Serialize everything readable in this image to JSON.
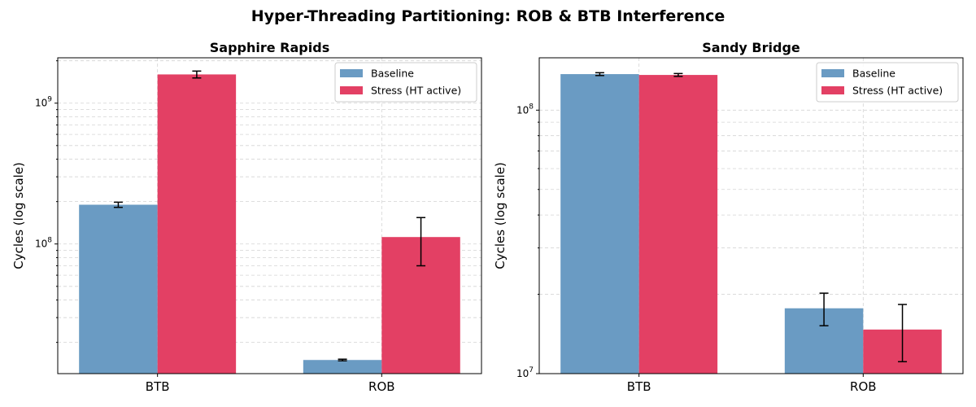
{
  "suptitle": "Hyper-Threading Partitioning: ROB & BTB Interference",
  "legend_labels": [
    "Baseline",
    "Stress (HT active)"
  ],
  "colors": {
    "baseline": "#6a9bc3",
    "stress": "#e34064"
  },
  "chart_data": [
    {
      "type": "bar",
      "title": "Sapphire Rapids",
      "ylabel": "Cycles (log scale)",
      "xlabel": "",
      "yscale": "log",
      "ylim": [
        12000000,
        2100000000
      ],
      "yticks": [
        {
          "value": 100000000,
          "base": "10",
          "exp": "8"
        },
        {
          "value": 1000000000,
          "base": "10",
          "exp": "9"
        }
      ],
      "grid": true,
      "legend": "upper right",
      "categories": [
        "BTB",
        "ROB"
      ],
      "series": [
        {
          "name": "Baseline",
          "values": [
            190000000,
            15000000
          ],
          "errors": [
            8000000,
            200000
          ]
        },
        {
          "name": "Stress (HT active)",
          "values": [
            1600000000,
            112000000
          ],
          "errors": [
            90000000,
            42000000
          ]
        }
      ]
    },
    {
      "type": "bar",
      "title": "Sandy Bridge",
      "ylabel": "Cycles (log scale)",
      "xlabel": "",
      "yscale": "log",
      "ylim": [
        10000000,
        158000000
      ],
      "yticks": [
        {
          "value": 10000000,
          "base": "10",
          "exp": "7"
        },
        {
          "value": 100000000,
          "base": "10",
          "exp": "8"
        }
      ],
      "grid": true,
      "legend": "upper right",
      "categories": [
        "BTB",
        "ROB"
      ],
      "series": [
        {
          "name": "Baseline",
          "values": [
            137000000,
            17700000
          ],
          "errors": [
            1700000,
            2500000
          ]
        },
        {
          "name": "Stress (HT active)",
          "values": [
            136000000,
            14700000
          ],
          "errors": [
            1700000,
            3600000
          ]
        }
      ]
    }
  ]
}
